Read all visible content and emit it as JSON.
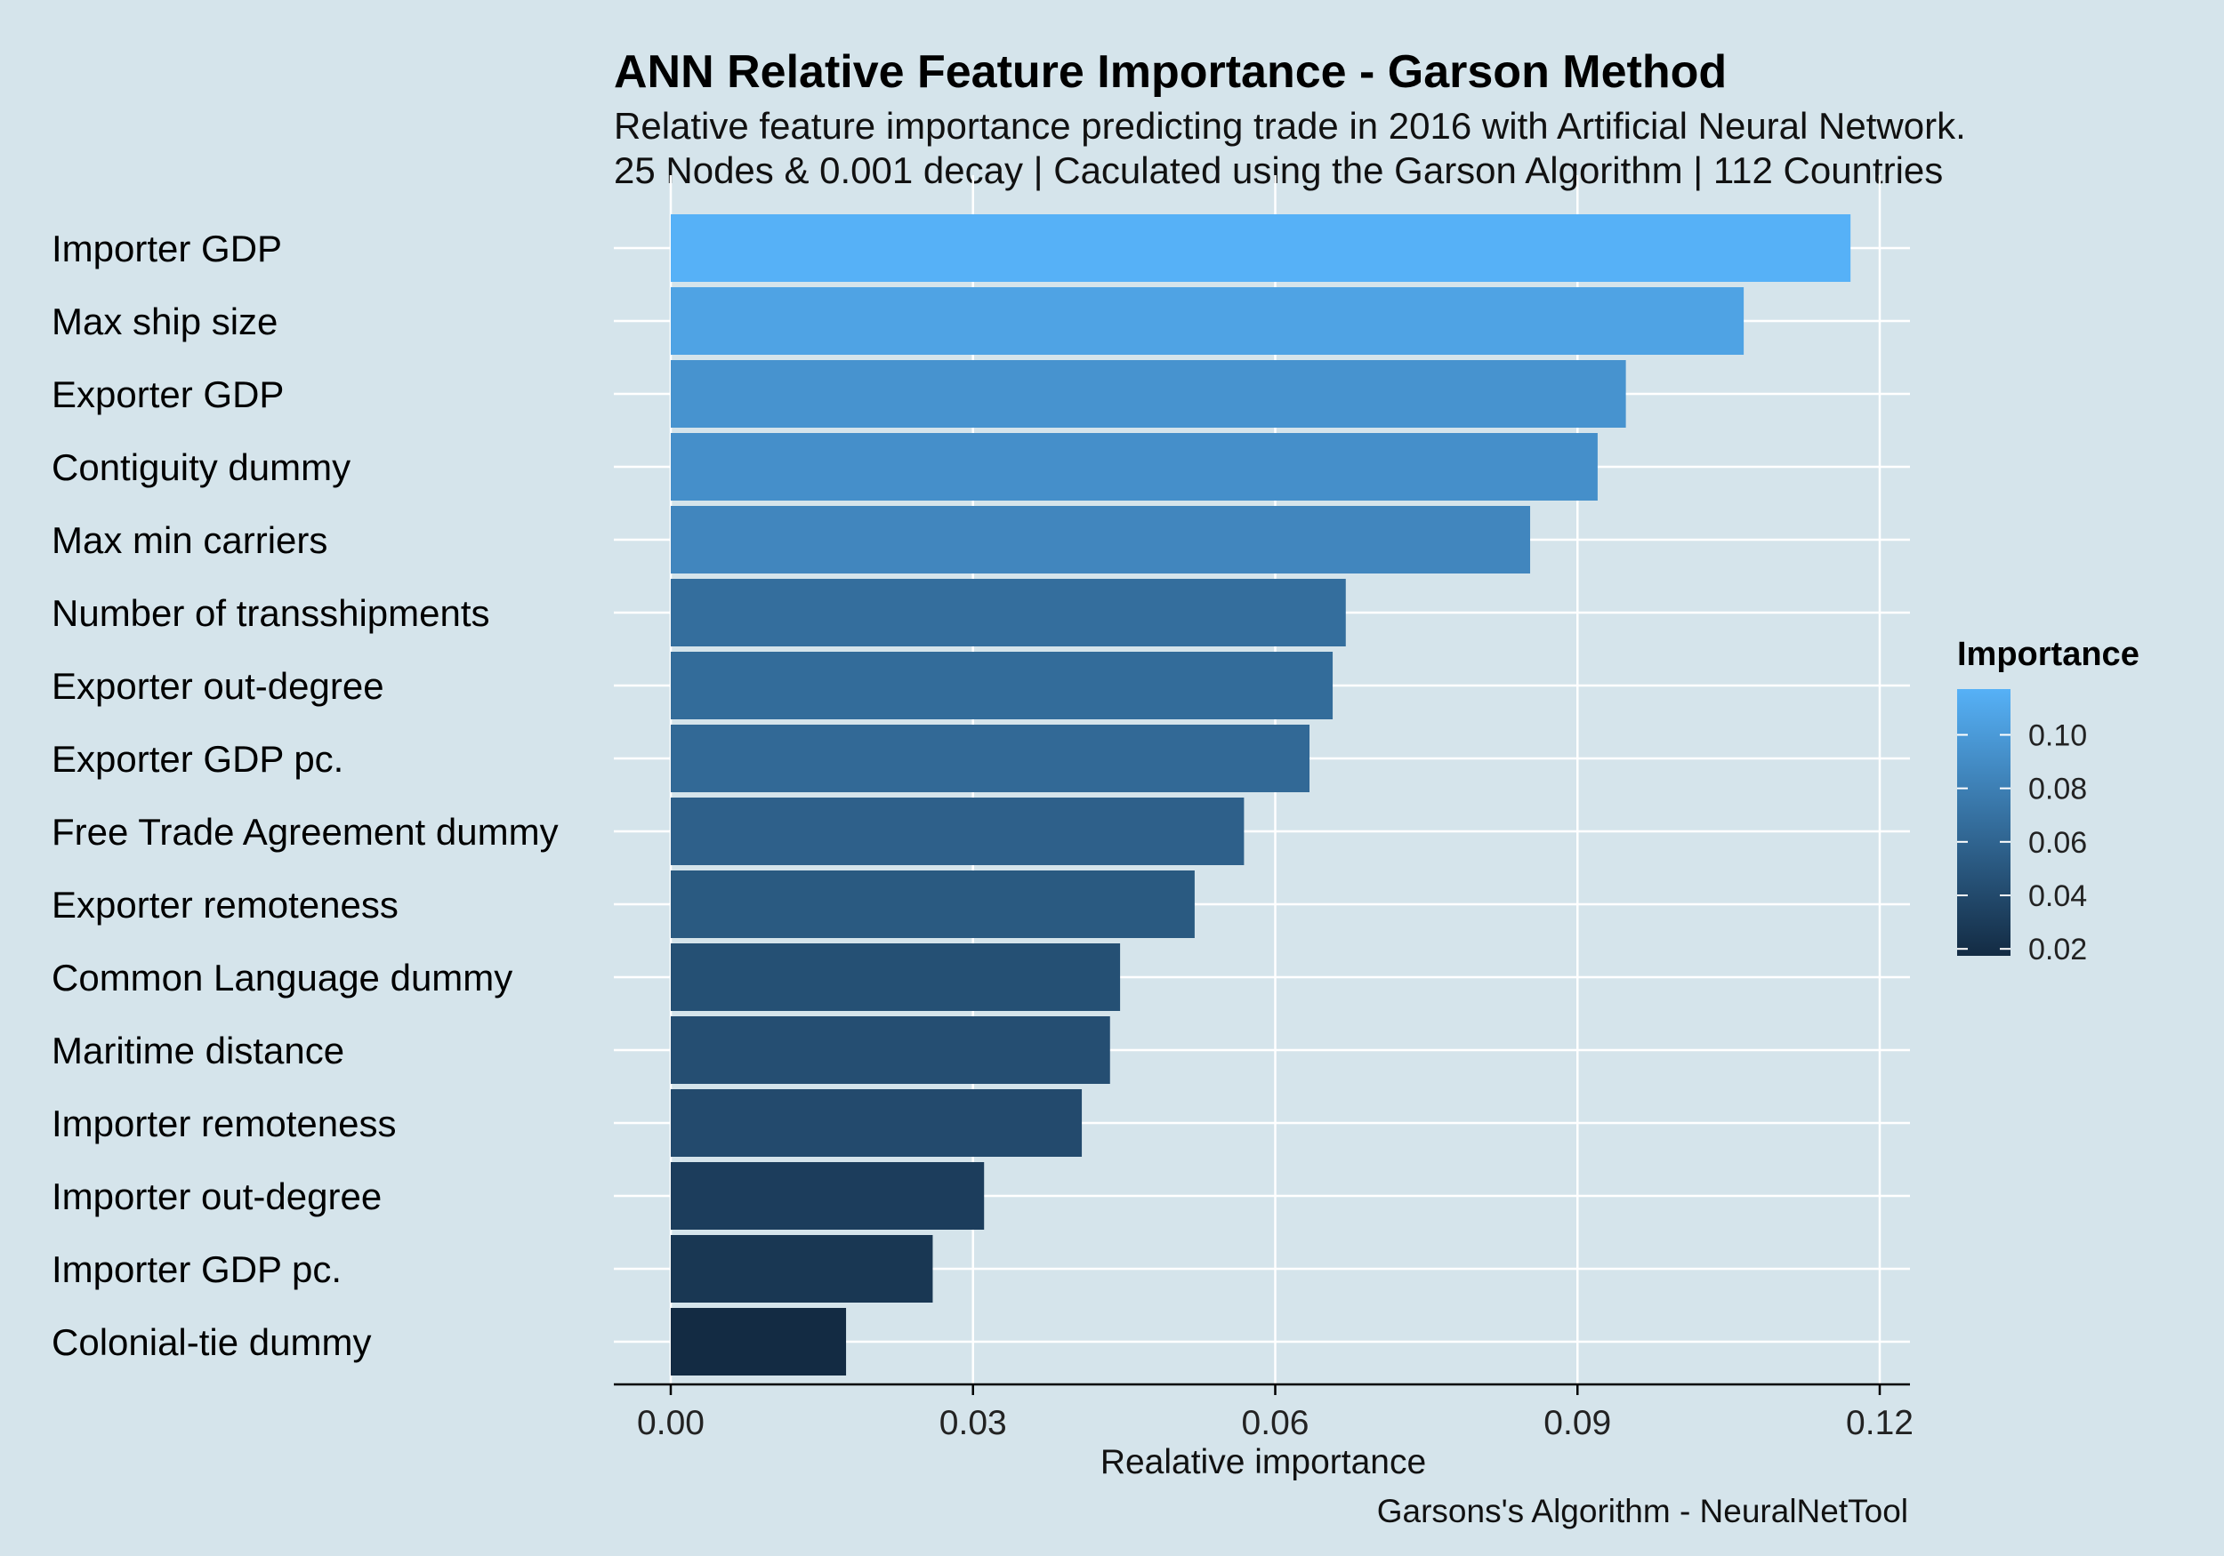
{
  "chart_data": {
    "type": "bar",
    "orientation": "horizontal",
    "title": "ANN Relative Feature Importance - Garson Method",
    "subtitle_lines": [
      "Relative feature importance predicting trade in 2016 with Artificial Neural Network.",
      "25 Nodes & 0.001 decay | Caculated using the Garson Algorithm | 112 Countries"
    ],
    "xlabel": "Realative importance",
    "ylabel": "",
    "caption": "Garsons's Algorithm - NeuralNetTool",
    "xlim": [
      0,
      0.12
    ],
    "x_ticks": [
      0.0,
      0.03,
      0.06,
      0.09,
      0.12
    ],
    "x_tick_labels": [
      "0.00",
      "0.03",
      "0.06",
      "0.09",
      "0.12"
    ],
    "categories": [
      "Importer GDP",
      "Max ship size",
      "Exporter GDP",
      "Contiguity dummy",
      "Max min carriers",
      "Number of transshipments",
      "Exporter out-degree",
      "Exporter GDP pc.",
      "Free Trade Agreement dummy",
      "Exporter remoteness",
      "Common Language dummy",
      "Maritime distance",
      "Importer remoteness",
      "Importer out-degree",
      "Importer GDP pc.",
      "Colonial-tie dummy"
    ],
    "values": [
      0.1171,
      0.1065,
      0.0948,
      0.092,
      0.0853,
      0.067,
      0.0657,
      0.0634,
      0.0569,
      0.052,
      0.0446,
      0.0436,
      0.0408,
      0.0311,
      0.026,
      0.0174
    ],
    "legend": {
      "title": "Importance",
      "range": [
        0.0174,
        0.1171
      ],
      "ticks": [
        0.02,
        0.04,
        0.06,
        0.08,
        0.1
      ],
      "tick_labels": [
        "0.02",
        "0.04",
        "0.06",
        "0.08",
        "0.10"
      ],
      "position": "right"
    },
    "colors": {
      "low": "#132b43",
      "high": "#56b1f7",
      "background": "#d5e4eb",
      "grid": "#ffffff"
    },
    "grid": true
  }
}
